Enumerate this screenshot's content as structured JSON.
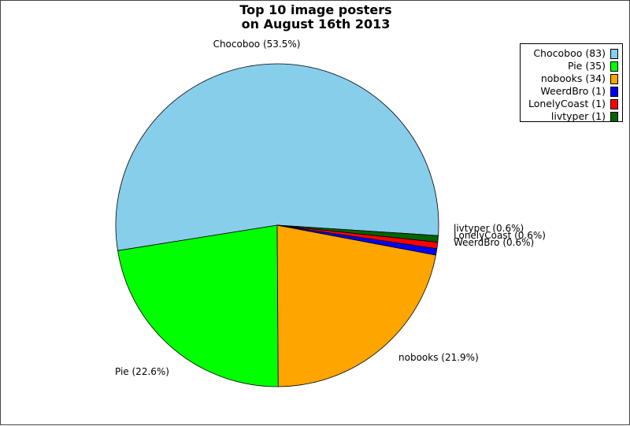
{
  "chart_data": {
    "type": "pie",
    "title": [
      "Top 10 image posters",
      "on August 16th 2013"
    ],
    "slices": [
      {
        "name": "Chocoboo",
        "value": 83,
        "pct": "53.5%",
        "color": "#87CEEB"
      },
      {
        "name": "Pie",
        "value": 35,
        "pct": "22.6%",
        "color": "#00FF00"
      },
      {
        "name": "nobooks",
        "value": 34,
        "pct": "21.9%",
        "color": "#FFA500"
      },
      {
        "name": "WeerdBro",
        "value": 1,
        "pct": "0.6%",
        "color": "#0000FF"
      },
      {
        "name": "LonelyCoast",
        "value": 1,
        "pct": "0.6%",
        "color": "#FF0000"
      },
      {
        "name": "livtyper",
        "value": 1,
        "pct": "0.6%",
        "color": "#006400"
      }
    ],
    "legend": {
      "position": "top-right"
    }
  }
}
